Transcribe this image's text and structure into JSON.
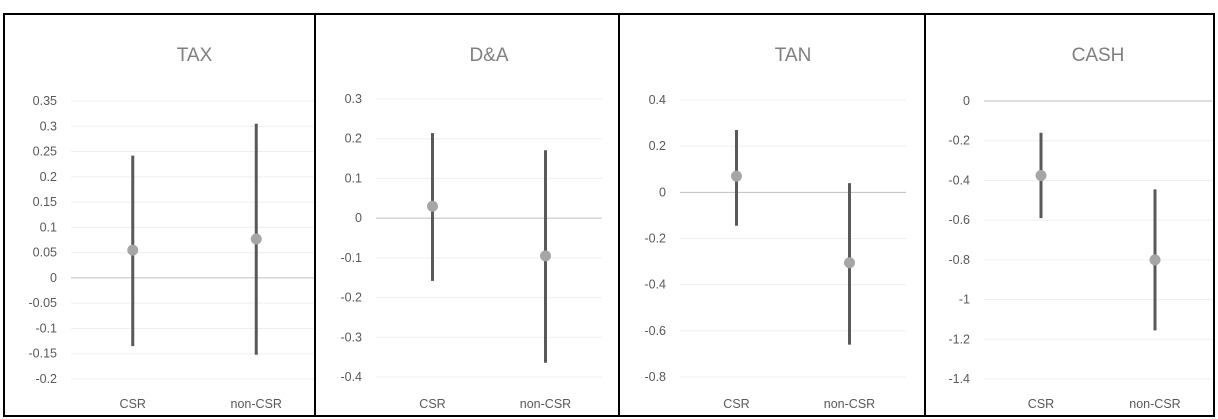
{
  "chart_data": [
    {
      "type": "scatter",
      "title": "TAX",
      "categories": [
        "CSR",
        "non-CSR"
      ],
      "values": [
        0.055,
        0.077
      ],
      "upper": [
        0.242,
        0.305
      ],
      "lower": [
        -0.135,
        -0.152
      ],
      "yticks": [
        0.35,
        0.3,
        0.25,
        0.2,
        0.15,
        0.1,
        0.05,
        0,
        -0.05,
        -0.1,
        -0.15,
        -0.2
      ],
      "ytick_labels": [
        "0.35",
        "0.3",
        "0.25",
        "0.2",
        "0.15",
        "0.1",
        "0.05",
        "0",
        "-0.05",
        "-0.1",
        "-0.15",
        "-0.2"
      ],
      "ylim": [
        -0.2,
        0.35
      ],
      "grid": true
    },
    {
      "type": "scatter",
      "title": "D&A",
      "categories": [
        "CSR",
        "non-CSR"
      ],
      "values": [
        0.03,
        -0.095
      ],
      "upper": [
        0.214,
        0.171
      ],
      "lower": [
        -0.158,
        -0.364
      ],
      "yticks": [
        0.3,
        0.2,
        0.1,
        0,
        -0.1,
        -0.2,
        -0.3,
        -0.4
      ],
      "ytick_labels": [
        "0.3",
        "0.2",
        "0.1",
        "0",
        "-0.1",
        "-0.2",
        "-0.3",
        "-0.4"
      ],
      "ylim": [
        -0.4,
        0.3
      ],
      "grid": true
    },
    {
      "type": "scatter",
      "title": "TAN",
      "categories": [
        "CSR",
        "non-CSR"
      ],
      "values": [
        0.07,
        -0.305
      ],
      "upper": [
        0.27,
        0.04
      ],
      "lower": [
        -0.145,
        -0.66
      ],
      "yticks": [
        0.4,
        0.2,
        0,
        -0.2,
        -0.4,
        -0.6,
        -0.8
      ],
      "ytick_labels": [
        "0.4",
        "0.2",
        "0",
        "-0.2",
        "-0.4",
        "-0.6",
        "-0.8"
      ],
      "ylim": [
        -0.8,
        0.4
      ],
      "grid": true
    },
    {
      "type": "scatter",
      "title": "CASH",
      "categories": [
        "CSR",
        "non-CSR"
      ],
      "values": [
        -0.375,
        -0.8
      ],
      "upper": [
        -0.16,
        -0.445
      ],
      "lower": [
        -0.59,
        -1.155
      ],
      "yticks": [
        0,
        -0.2,
        -0.4,
        -0.6,
        -0.8,
        -1,
        -1.2,
        -1.4
      ],
      "ytick_labels": [
        "0",
        "-0.2",
        "-0.4",
        "-0.6",
        "-0.8",
        "-1",
        "-1.2",
        "-1.4"
      ],
      "ylim": [
        -1.4,
        0
      ],
      "grid": true
    }
  ],
  "colors": {
    "interval": "#595959",
    "marker": "#a6a6a6",
    "zero_line": "#bfbfbf",
    "gridline": "#efefef",
    "tick_text": "#595959",
    "panel_border": "#000000"
  }
}
